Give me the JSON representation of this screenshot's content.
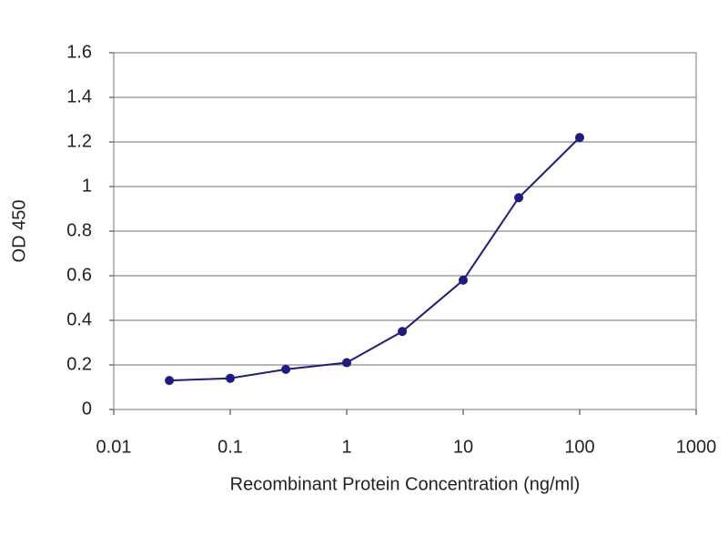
{
  "chart_data": {
    "type": "line",
    "xlabel": "Recombinant Protein Concentration (ng/ml)",
    "ylabel": "OD 450",
    "x": [
      0.03,
      0.1,
      0.3,
      1,
      3,
      10,
      30,
      100
    ],
    "series": [
      {
        "color": "#1c1c84",
        "values": [
          0.13,
          0.14,
          0.18,
          0.21,
          0.35,
          0.58,
          0.95,
          1.22
        ]
      }
    ],
    "xscale": "log",
    "xlim": [
      0.01,
      1000
    ],
    "xticks": [
      0.01,
      0.1,
      1,
      10,
      100,
      1000
    ],
    "ylim": [
      0,
      1.6
    ],
    "yticks": [
      0,
      0.2,
      0.4,
      0.6,
      0.8,
      1,
      1.2,
      1.4,
      1.6
    ],
    "grid": true
  }
}
